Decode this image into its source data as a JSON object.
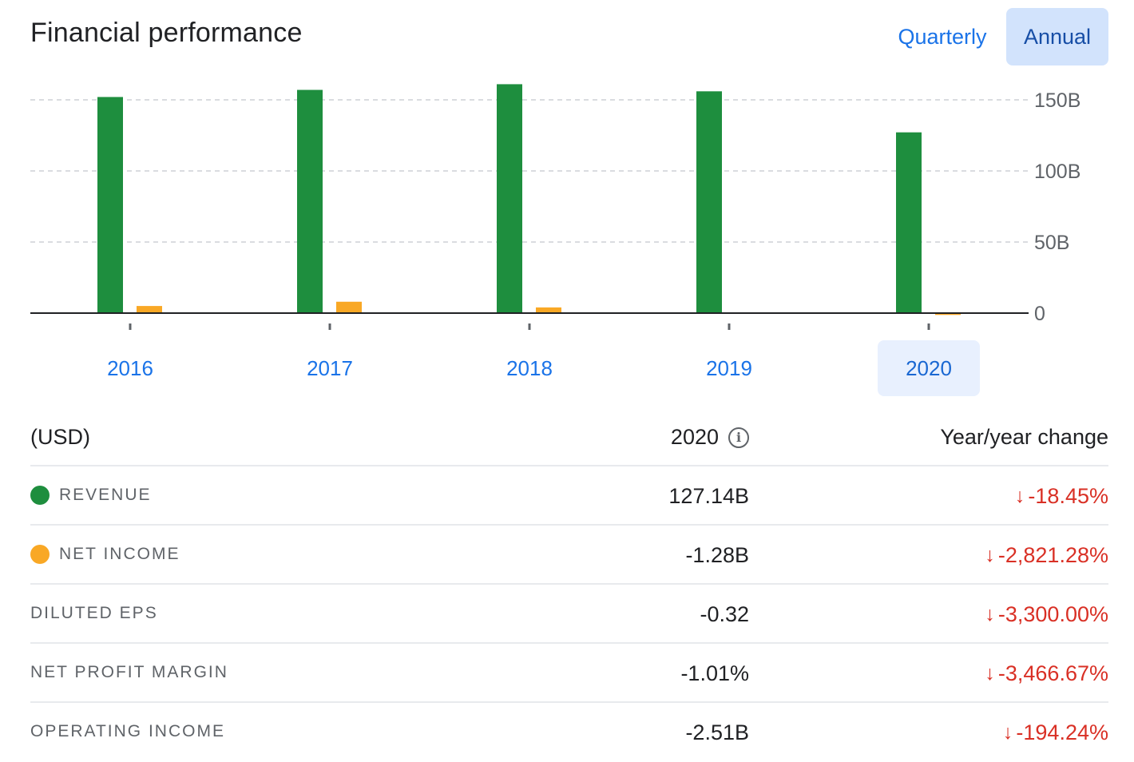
{
  "header": {
    "title": "Financial performance",
    "toggles": {
      "quarterly": "Quarterly",
      "annual": "Annual",
      "selected": "Annual"
    }
  },
  "colors": {
    "revenue": "#1e8e3e",
    "net_income": "#f9a825",
    "accent": "#1a73e8",
    "negative": "#d93025"
  },
  "chart_data": {
    "type": "bar",
    "categories": [
      "2016",
      "2017",
      "2018",
      "2019",
      "2020"
    ],
    "series": [
      {
        "name": "Revenue",
        "values": [
          152,
          157,
          161,
          156,
          127.14
        ]
      },
      {
        "name": "Net income",
        "values": [
          5,
          8,
          4,
          0,
          -1.28
        ]
      }
    ],
    "ylim": [
      0,
      165
    ],
    "yticks": [
      0,
      50,
      100,
      150
    ],
    "ytick_labels": [
      "0",
      "50B",
      "100B",
      "150B"
    ],
    "y_axis_position": "right",
    "grid": true,
    "selected_category": "2020"
  },
  "table": {
    "currency_label": "(USD)",
    "period_label": "2020",
    "change_label": "Year/year change",
    "arrow_glyph": "↓",
    "rows": [
      {
        "label": "REVENUE",
        "value": "127.14B",
        "change": "-18.45%",
        "dot": "revenue"
      },
      {
        "label": "NET INCOME",
        "value": "-1.28B",
        "change": "-2,821.28%",
        "dot": "net_income"
      },
      {
        "label": "DILUTED EPS",
        "value": "-0.32",
        "change": "-3,300.00%"
      },
      {
        "label": "NET PROFIT MARGIN",
        "value": "-1.01%",
        "change": "-3,466.67%"
      },
      {
        "label": "OPERATING INCOME",
        "value": "-2.51B",
        "change": "-194.24%"
      }
    ]
  }
}
